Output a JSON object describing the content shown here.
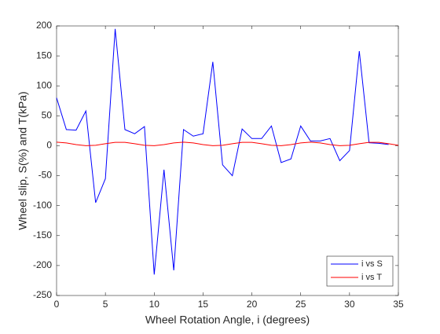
{
  "chart_data": {
    "type": "line",
    "xlabel": "Wheel Rotation Angle, i (degrees)",
    "ylabel": "Wheel slip, S(%) and T(kPa)",
    "x": [
      0,
      1,
      2,
      3,
      4,
      5,
      6,
      7,
      8,
      9,
      10,
      11,
      12,
      13,
      14,
      15,
      16,
      17,
      18,
      19,
      20,
      21,
      22,
      23,
      24,
      25,
      26,
      27,
      28,
      29,
      30,
      31,
      32,
      33,
      34,
      35
    ],
    "series": [
      {
        "name": "i vs S",
        "color": "#0000ff",
        "values": [
          80,
          27,
          26,
          58,
          -95,
          -55,
          195,
          27,
          20,
          32,
          -215,
          -40,
          -208,
          27,
          16,
          20,
          140,
          -32,
          -50,
          28,
          12,
          12,
          33,
          -28,
          -22,
          33,
          8,
          8,
          12,
          -25,
          -8,
          158,
          5,
          4,
          2,
          null
        ]
      },
      {
        "name": "i vs T",
        "color": "#ff0000",
        "values": [
          6,
          4.7,
          1.9,
          0.1,
          0.8,
          3.4,
          5.7,
          5.7,
          3.4,
          0.8,
          0.1,
          1.9,
          4.7,
          6,
          4.7,
          1.9,
          0.1,
          0.8,
          3.4,
          5.7,
          5.7,
          3.4,
          0.8,
          0.1,
          1.9,
          4.7,
          6,
          4.7,
          1.9,
          0.1,
          0.8,
          3.4,
          5.7,
          5.7,
          3.4,
          0.8
        ]
      }
    ],
    "xlim": [
      0,
      35
    ],
    "xticks": [
      0,
      5,
      10,
      15,
      20,
      25,
      30,
      35
    ],
    "ylim": [
      -250,
      200
    ],
    "yticks": [
      -250,
      -200,
      -150,
      -100,
      -50,
      0,
      50,
      100,
      150,
      200
    ],
    "legend": "lower right"
  }
}
